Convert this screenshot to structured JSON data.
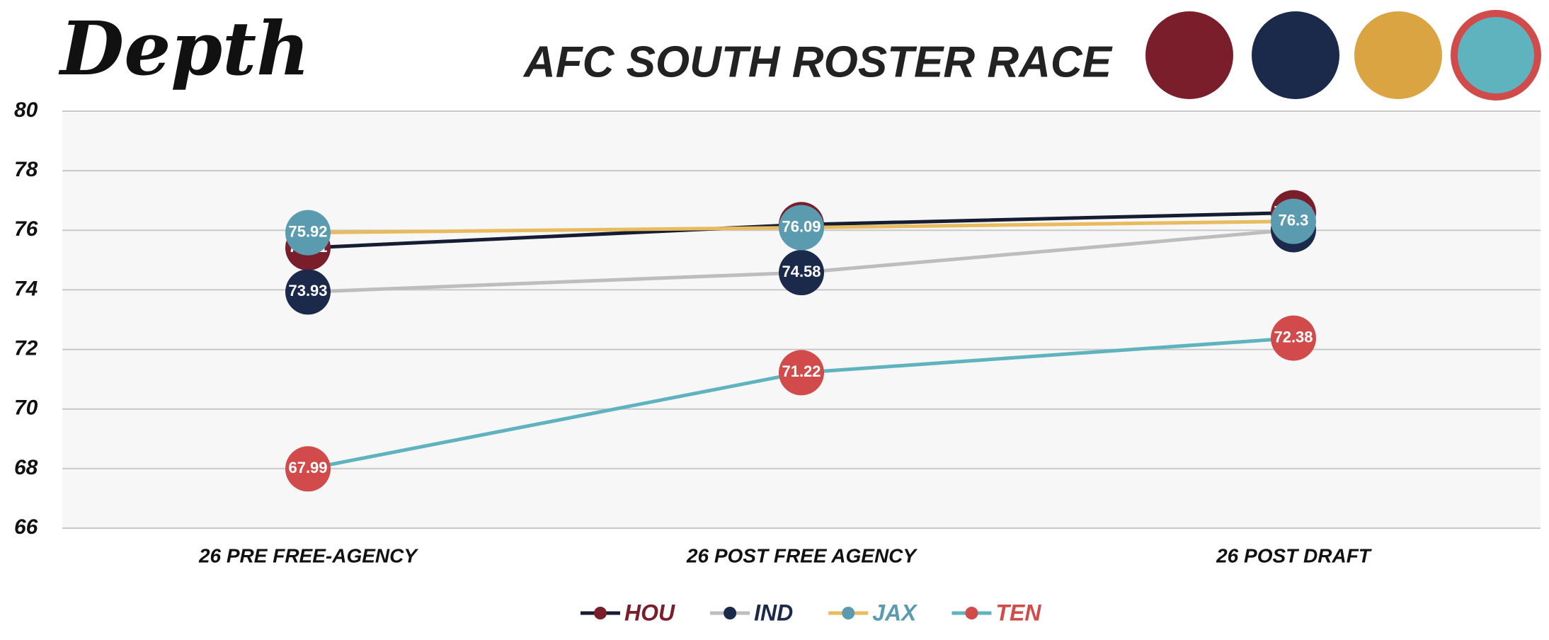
{
  "logo": {
    "text": "Depth"
  },
  "chart_data": {
    "type": "line",
    "title": "AFC SOUTH ROSTER RACE",
    "categories": [
      "26 PRE FREE-AGENCY",
      "26 POST FREE AGENCY",
      "26 POST DRAFT"
    ],
    "series": [
      {
        "name": "HOU",
        "color": "#161d33",
        "marker_color": "#7b1e2c",
        "values": [
          75.41,
          76.19,
          76.59
        ]
      },
      {
        "name": "IND",
        "color": "#bdbdbd",
        "marker_color": "#1b2a4a",
        "values": [
          73.93,
          74.58,
          76.02
        ]
      },
      {
        "name": "JAX",
        "color": "#e8bc5e",
        "marker_color": "#5b9bb0",
        "values": [
          75.92,
          76.09,
          76.3
        ]
      },
      {
        "name": "TEN",
        "color": "#5fb3bf",
        "marker_color": "#d24b4b",
        "values": [
          67.99,
          71.22,
          72.38
        ]
      }
    ],
    "ylim": [
      66,
      80
    ],
    "yticks": [
      66,
      68,
      70,
      72,
      74,
      76,
      78,
      80
    ],
    "grid": true,
    "legend": "bottom"
  }
}
